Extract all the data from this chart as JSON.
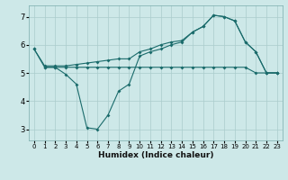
{
  "xlabel": "Humidex (Indice chaleur)",
  "background_color": "#cde8e8",
  "grid_color": "#aacccc",
  "line_color": "#1a6b6b",
  "xlim": [
    -0.5,
    23.5
  ],
  "ylim": [
    2.6,
    7.4
  ],
  "yticks": [
    3,
    4,
    5,
    6,
    7
  ],
  "xticks": [
    0,
    1,
    2,
    3,
    4,
    5,
    6,
    7,
    8,
    9,
    10,
    11,
    12,
    13,
    14,
    15,
    16,
    17,
    18,
    19,
    20,
    21,
    22,
    23
  ],
  "line1_x": [
    0,
    1,
    2,
    3,
    4,
    5,
    6,
    7,
    8,
    9,
    10,
    11,
    12,
    13,
    14,
    15,
    16,
    17,
    18,
    19,
    20,
    21,
    22,
    23
  ],
  "line1_y": [
    5.85,
    5.25,
    5.25,
    5.25,
    5.3,
    5.35,
    5.4,
    5.45,
    5.5,
    5.5,
    5.75,
    5.85,
    6.0,
    6.1,
    6.15,
    6.45,
    6.65,
    7.05,
    7.0,
    6.85,
    6.1,
    5.75,
    5.0,
    5.0
  ],
  "line2_x": [
    0,
    1,
    2,
    3,
    4,
    5,
    6,
    7,
    8,
    9,
    10,
    11,
    12,
    13,
    14,
    15,
    16,
    17,
    18,
    19,
    20,
    21,
    22,
    23
  ],
  "line2_y": [
    5.85,
    5.2,
    5.2,
    4.95,
    4.6,
    3.05,
    3.0,
    3.5,
    4.35,
    4.6,
    5.6,
    5.75,
    5.85,
    6.0,
    6.1,
    6.45,
    6.65,
    7.05,
    7.0,
    6.85,
    6.1,
    5.75,
    5.0,
    5.0
  ],
  "line3_x": [
    1,
    2,
    3,
    4,
    5,
    6,
    7,
    8,
    9,
    10,
    11,
    12,
    13,
    14,
    15,
    16,
    17,
    18,
    19,
    20,
    21,
    22,
    23
  ],
  "line3_y": [
    5.2,
    5.2,
    5.2,
    5.2,
    5.2,
    5.2,
    5.2,
    5.2,
    5.2,
    5.2,
    5.2,
    5.2,
    5.2,
    5.2,
    5.2,
    5.2,
    5.2,
    5.2,
    5.2,
    5.2,
    5.0,
    5.0,
    5.0
  ]
}
